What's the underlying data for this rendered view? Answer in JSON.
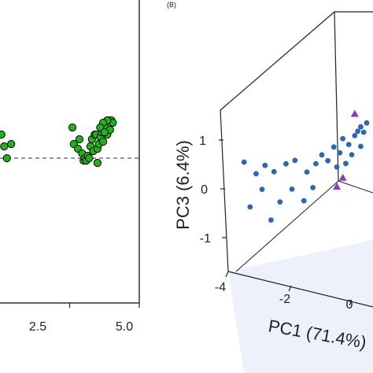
{
  "chart_data": [
    {
      "type": "scatter",
      "panel": "A",
      "xlim": [
        -5.0,
        5.0
      ],
      "ylim": [
        -3.0,
        4.0
      ],
      "x_ticks": [
        "2.5",
        "5.0"
      ],
      "reference_line": {
        "axis": "y",
        "value": 0,
        "style": "dashed"
      },
      "grid": false,
      "colors": {
        "points": "#22b21a",
        "edge": "#111111"
      },
      "series": [
        {
          "points": [
            [
              -4.9,
              1.0
            ],
            [
              -4.7,
              0.5
            ],
            [
              -4.5,
              0.0
            ],
            [
              -4.2,
              0.6
            ],
            [
              0.2,
              1.3
            ],
            [
              0.3,
              0.6
            ],
            [
              0.6,
              0.4
            ],
            [
              0.7,
              0.8
            ],
            [
              0.9,
              0.2
            ],
            [
              1.0,
              -0.1
            ],
            [
              1.1,
              0.0
            ],
            [
              1.2,
              -0.1
            ],
            [
              1.3,
              0.1
            ],
            [
              1.4,
              0.0
            ],
            [
              1.5,
              0.5
            ],
            [
              1.6,
              0.8
            ],
            [
              1.7,
              0.3
            ],
            [
              1.8,
              1.0
            ],
            [
              1.9,
              1.0
            ],
            [
              2.0,
              0.4
            ],
            [
              2.0,
              -0.2
            ],
            [
              2.1,
              0.6
            ],
            [
              2.2,
              0.9
            ],
            [
              2.3,
              1.1
            ],
            [
              2.4,
              0.7
            ],
            [
              2.5,
              1.5
            ],
            [
              2.6,
              1.3
            ],
            [
              2.7,
              1.0
            ],
            [
              2.8,
              1.6
            ],
            [
              2.9,
              1.2
            ],
            [
              3.0,
              1.6
            ],
            [
              3.1,
              1.5
            ],
            [
              2.7,
              1.6
            ],
            [
              2.4,
              1.5
            ],
            [
              2.2,
              1.3
            ],
            [
              2.5,
              1.1
            ]
          ]
        }
      ]
    },
    {
      "type": "scatter",
      "panel": "B",
      "panel_label": "(B)",
      "xlabel": "PC1 (71.4%)",
      "zlabel": "PC3 (6.4%)",
      "x_ticks": [
        "-4",
        "-2",
        "0"
      ],
      "z_ticks": [
        "1",
        "0",
        "-1"
      ],
      "projection": "3d",
      "colors": {
        "series_blue": "#2f66b3",
        "series_purple": "#8f3bbd",
        "floor": "#eef0fb"
      },
      "series": [
        {
          "marker": "circle",
          "color": "#2f66b3",
          "points": [
            [
              -3.6,
              0.2
            ],
            [
              -3.2,
              0.0
            ],
            [
              -3.0,
              -0.3
            ],
            [
              -2.9,
              0.2
            ],
            [
              -2.6,
              0.1
            ],
            [
              -2.4,
              -0.5
            ],
            [
              -2.2,
              0.3
            ],
            [
              -2.0,
              -0.2
            ],
            [
              -1.9,
              0.4
            ],
            [
              -1.6,
              -0.4
            ],
            [
              -1.5,
              0.2
            ],
            [
              -1.2,
              0.4
            ],
            [
              -1.0,
              0.6
            ],
            [
              -0.8,
              0.5
            ],
            [
              -0.6,
              0.8
            ],
            [
              -0.4,
              0.7
            ],
            [
              -0.3,
              1.0
            ],
            [
              -0.1,
              0.9
            ],
            [
              0.1,
              1.1
            ],
            [
              0.2,
              1.2
            ],
            [
              0.3,
              1.3
            ],
            [
              0.4,
              1.2
            ],
            [
              0.5,
              1.4
            ],
            [
              0.0,
              0.7
            ],
            [
              -0.2,
              0.5
            ],
            [
              -0.5,
              0.4
            ],
            [
              -2.7,
              -0.9
            ],
            [
              -3.4,
              -0.7
            ],
            [
              -1.3,
              -0.1
            ],
            [
              0.3,
              0.9
            ]
          ]
        },
        {
          "marker": "triangle",
          "color": "#8f3bbd",
          "points": [
            [
              0.1,
              1.55
            ],
            [
              -0.3,
              0.2
            ],
            [
              -0.5,
              0.0
            ]
          ]
        }
      ]
    }
  ]
}
